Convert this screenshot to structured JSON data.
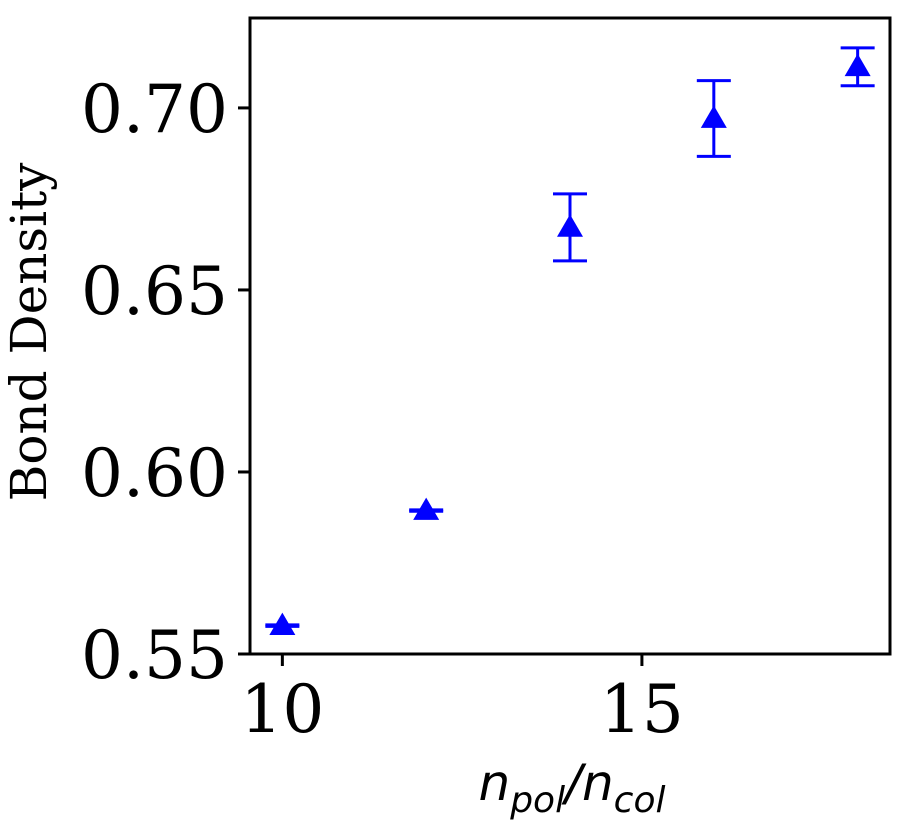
{
  "chart_data": {
    "type": "scatter",
    "title": "",
    "xlabel": {
      "n": "n",
      "sub1": "pol",
      "slash": "/",
      "sub2": "col"
    },
    "ylabel": "Bond Density",
    "xlim": [
      9.55,
      18.45
    ],
    "ylim": [
      0.55,
      0.7247
    ],
    "xticks": [
      10,
      15
    ],
    "xtick_labels": [
      "10",
      "15"
    ],
    "yticks": [
      0.55,
      0.6,
      0.65,
      0.7
    ],
    "ytick_labels": [
      "0.55",
      "0.60",
      "0.65",
      "0.70"
    ],
    "grid": false,
    "color": "#0000ff",
    "marker": "triangle-up",
    "points": [
      {
        "x": 10,
        "y": 0.5578,
        "err": 0.0002
      },
      {
        "x": 12,
        "y": 0.5894,
        "err": 0.0002
      },
      {
        "x": 14,
        "y": 0.6672,
        "err": 0.0092
      },
      {
        "x": 16,
        "y": 0.6971,
        "err": 0.0104
      },
      {
        "x": 18,
        "y": 0.7113,
        "err": 0.0052
      }
    ]
  }
}
